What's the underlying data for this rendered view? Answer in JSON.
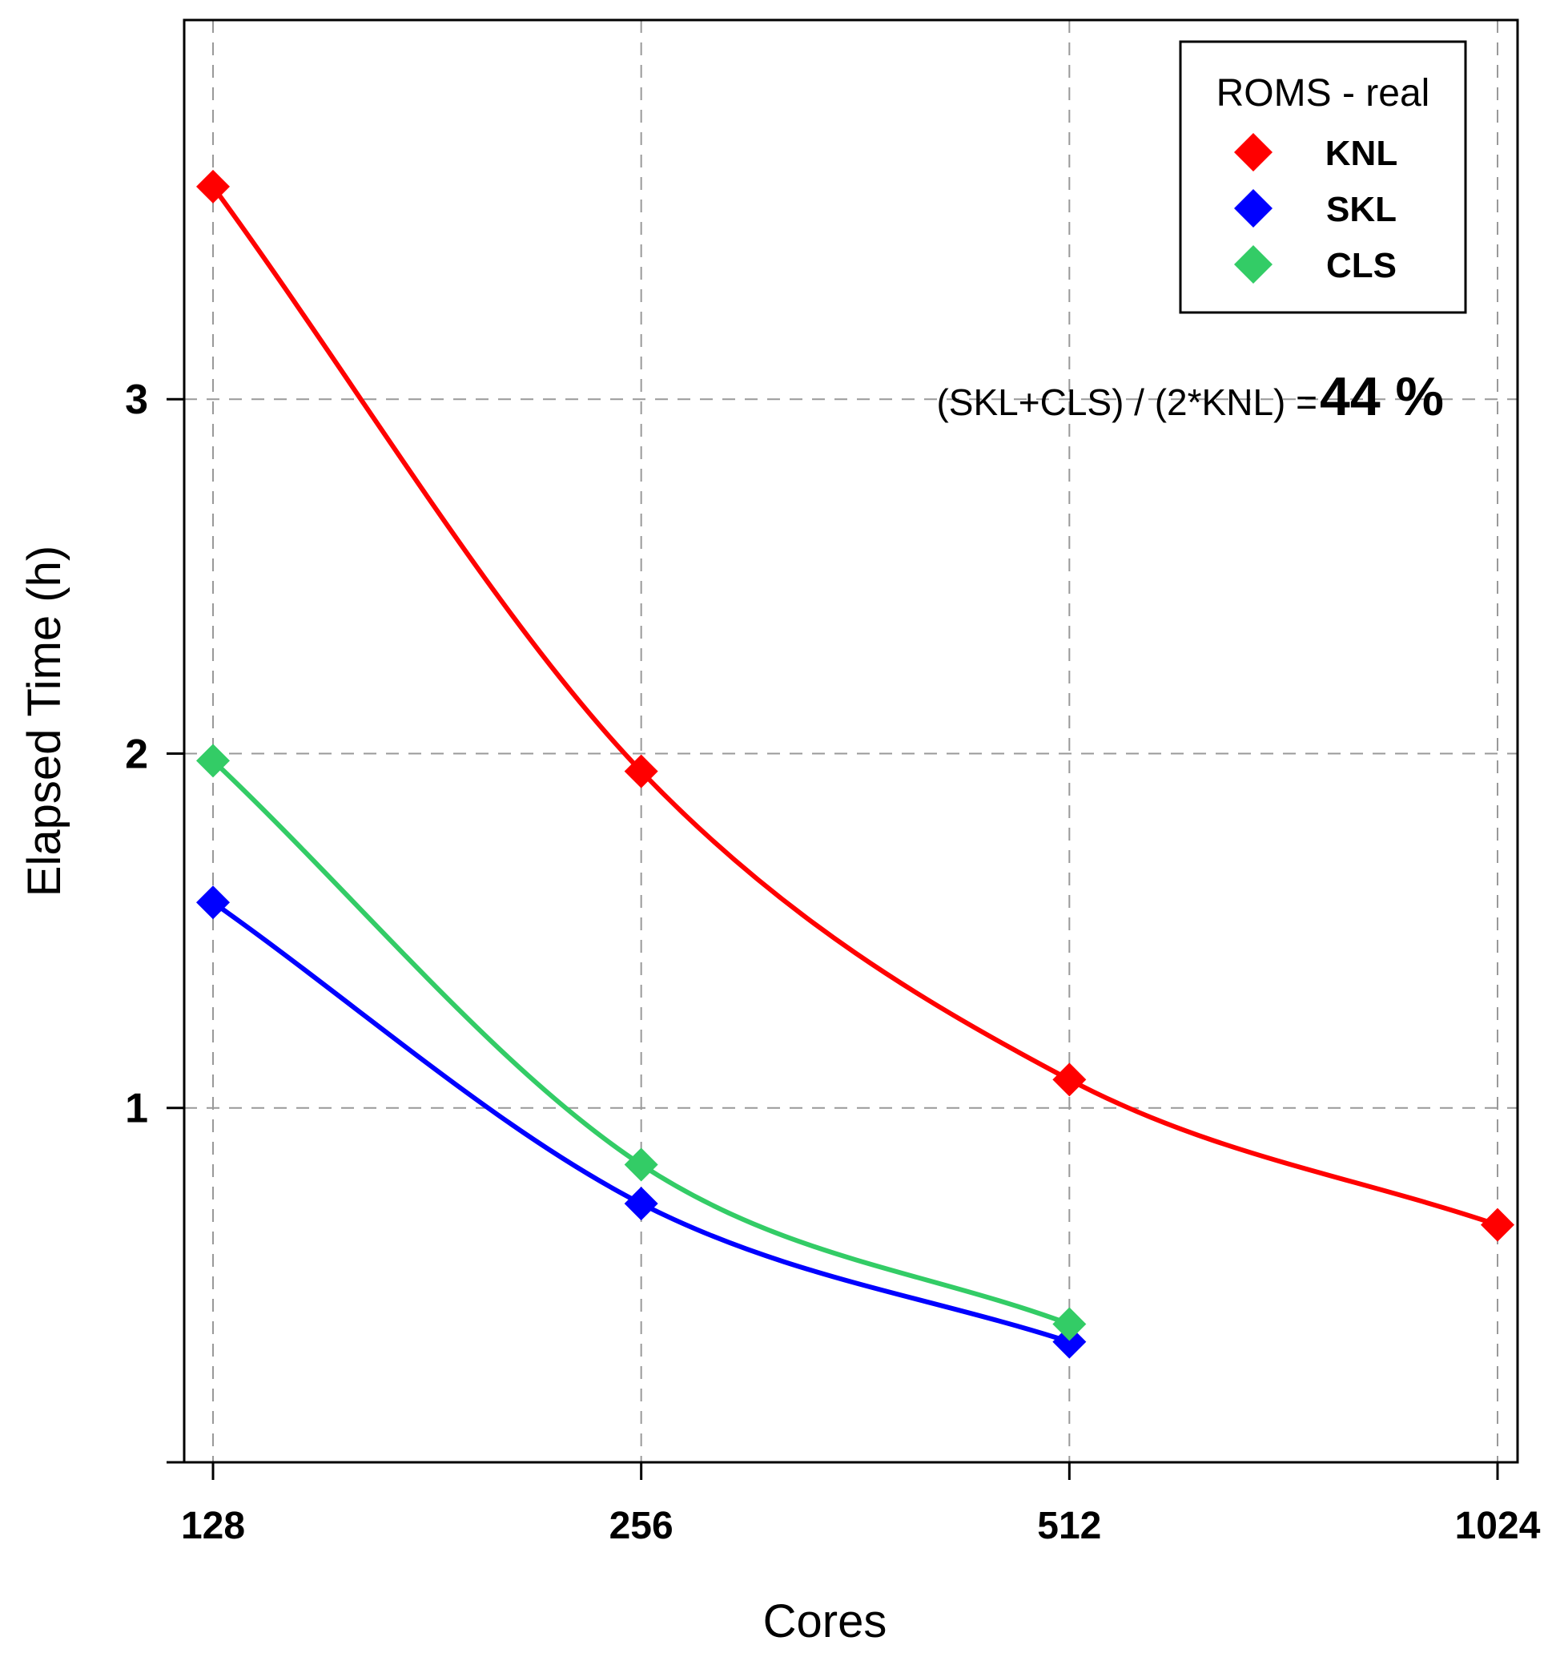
{
  "chart_data": {
    "type": "line",
    "title": "",
    "xlabel": "Cores",
    "ylabel": "Elapsed Time (h)",
    "x_scale": "log2",
    "x": [
      128,
      256,
      512,
      1024
    ],
    "x_tick_labels": [
      "128",
      "256",
      "512",
      "1024"
    ],
    "xlim": [
      128,
      1024
    ],
    "y_ticks": [
      1,
      2,
      3
    ],
    "y_tick_labels": [
      "1",
      "2",
      "3"
    ],
    "ylim": [
      0,
      4.07
    ],
    "grid": true,
    "legend": {
      "title": "ROMS - real",
      "position": "top-right"
    },
    "series": [
      {
        "name": "KNL",
        "color": "#ff0000",
        "x": [
          128,
          256,
          512,
          1024
        ],
        "values": [
          3.6,
          1.95,
          1.08,
          0.67
        ]
      },
      {
        "name": "SKL",
        "color": "#0000ff",
        "x": [
          128,
          256,
          512
        ],
        "values": [
          1.58,
          0.73,
          0.34
        ]
      },
      {
        "name": "CLS",
        "color": "#33cc66",
        "x": [
          128,
          256,
          512
        ],
        "values": [
          1.98,
          0.84,
          0.39
        ]
      }
    ],
    "annotation": {
      "text": "(SKL+CLS) / (2*KNL) = ",
      "value": "44 %"
    }
  }
}
